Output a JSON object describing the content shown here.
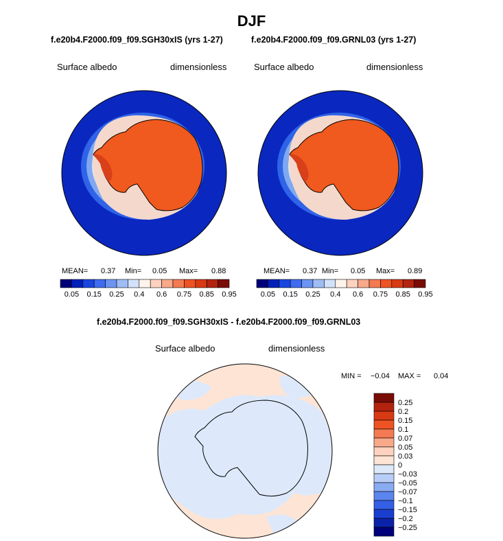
{
  "title": "DJF",
  "panels": [
    {
      "case": "f.e20b4.F2000.f09_f09.SGH30xIS (yrs 1-27)",
      "variable": "Surface albedo",
      "units": "dimensionless",
      "mean_label": "MEAN=",
      "mean": "0.37",
      "min_label": "Min=",
      "min": "0.05",
      "max_label": "Max=",
      "max": "0.88"
    },
    {
      "case": "f.e20b4.F2000.f09_f09.GRNL03 (yrs 1-27)",
      "variable": "Surface albedo",
      "units": "dimensionless",
      "mean_label": "MEAN=",
      "mean": "0.37",
      "min_label": "Min=",
      "min": "0.05",
      "max_label": "Max=",
      "max": "0.89"
    }
  ],
  "difference": {
    "case": "f.e20b4.F2000.f09_f09.SGH30xIS - f.e20b4.F2000.f09_f09.GRNL03",
    "variable": "Surface albedo",
    "units": "dimensionless",
    "min_label": "MIN =",
    "min": "−0.04",
    "max_label": "MAX =",
    "max": "0.04"
  },
  "colors": {
    "ocean": "#0a28c0",
    "ice_edge_1": "#2f63e8",
    "ice_edge_2": "#7fa8f0",
    "ice_edge_3": "#dbe9fb",
    "pack_ice": "#f5d8cc",
    "ice_sheet": "#f05a1e",
    "ice_sheet_dark": "#d8401a",
    "diff_pos": "#fde4d4",
    "diff_neg": "#dde9fb"
  },
  "chart_data": [
    {
      "type": "heatmap",
      "title": "Surface albedo",
      "subtitle": "f.e20b4.F2000.f09_f09.SGH30xIS (yrs 1-27)",
      "projection": "polar stereographic (south pole)",
      "colorbar": {
        "tick_labels": [
          "0.05",
          "0.15",
          "0.25",
          "0.4",
          "0.6",
          "0.75",
          "0.85",
          "0.95"
        ],
        "colors": [
          "#00007a",
          "#0020b8",
          "#1a46e0",
          "#3f6cf0",
          "#6c94f2",
          "#9fbcf5",
          "#d2e2fa",
          "#fff4ec",
          "#fdd2be",
          "#f8a98a",
          "#f37a52",
          "#ee5324",
          "#d83a14",
          "#b32410",
          "#7a0c06"
        ]
      },
      "mean": 0.37,
      "min": 0.05,
      "max": 0.88
    },
    {
      "type": "heatmap",
      "title": "Surface albedo",
      "subtitle": "f.e20b4.F2000.f09_f09.GRNL03 (yrs 1-27)",
      "projection": "polar stereographic (south pole)",
      "colorbar": {
        "tick_labels": [
          "0.05",
          "0.15",
          "0.25",
          "0.4",
          "0.6",
          "0.75",
          "0.85",
          "0.95"
        ],
        "colors": [
          "#00007a",
          "#0020b8",
          "#1a46e0",
          "#3f6cf0",
          "#6c94f2",
          "#9fbcf5",
          "#d2e2fa",
          "#fff4ec",
          "#fdd2be",
          "#f8a98a",
          "#f37a52",
          "#ee5324",
          "#d83a14",
          "#b32410",
          "#7a0c06"
        ]
      },
      "mean": 0.37,
      "min": 0.05,
      "max": 0.89
    },
    {
      "type": "heatmap",
      "title": "Surface albedo",
      "subtitle": "f.e20b4.F2000.f09_f09.SGH30xIS - f.e20b4.F2000.f09_f09.GRNL03",
      "projection": "polar stereographic (south pole)",
      "colorbar": {
        "tick_labels": [
          "0.25",
          "0.2",
          "0.15",
          "0.1",
          "0.07",
          "0.05",
          "0.03",
          "0",
          "−0.03",
          "−0.05",
          "−0.07",
          "−0.1",
          "−0.15",
          "−0.2",
          "−0.25"
        ],
        "colors": [
          "#7a0c06",
          "#b32410",
          "#d83a14",
          "#ee5324",
          "#f37a52",
          "#f8a98a",
          "#fdd2be",
          "#fde4d4",
          "#dde9fb",
          "#b8cdf7",
          "#8aaaf2",
          "#5c84ee",
          "#3560e6",
          "#1a3ed0",
          "#0a22a8",
          "#00007a"
        ]
      },
      "min": -0.04,
      "max": 0.04
    }
  ]
}
